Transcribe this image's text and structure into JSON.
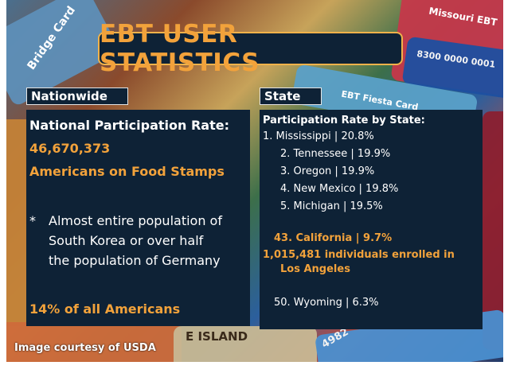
{
  "title": "EBT USER STATISTICS",
  "nationwide": {
    "tab_label": "Nationwide",
    "heading": "National Participation Rate:",
    "count": "46,670,373",
    "count_label": "Americans on Food Stamps",
    "note_bullet": "*",
    "note_lines": [
      "Almost entire population of",
      "South Korea or over half",
      "the population of Germany"
    ],
    "percent_line": "14% of all Americans"
  },
  "state": {
    "tab_label": "State",
    "heading": "Participation Rate by State:",
    "rows": [
      "1. Mississippi | 20.8%",
      "2. Tennessee | 19.9%",
      "3. Oregon | 19.9%",
      "4. New Mexico | 19.8%",
      "5. Michigan | 19.5%"
    ],
    "california": "43. California | 9.7%",
    "la_line1": "1,015,481 individuals enrolled in",
    "la_line2": "Los Angeles",
    "wyoming": "50. Wyoming | 6.3%"
  },
  "background_text": {
    "bridge_card": "Bridge Card",
    "missouri_ebt": "Missouri EBT",
    "card_number": "8300 0000 0001",
    "ebt_fiesta": "EBT Fiesta Card",
    "island": "E ISLAND",
    "card_digits": "4982"
  },
  "credit": "Image courtesy of USDA",
  "colors": {
    "panel_bg": "#0e2236",
    "accent_orange": "#f2a23b",
    "text_white": "#ffffff"
  }
}
